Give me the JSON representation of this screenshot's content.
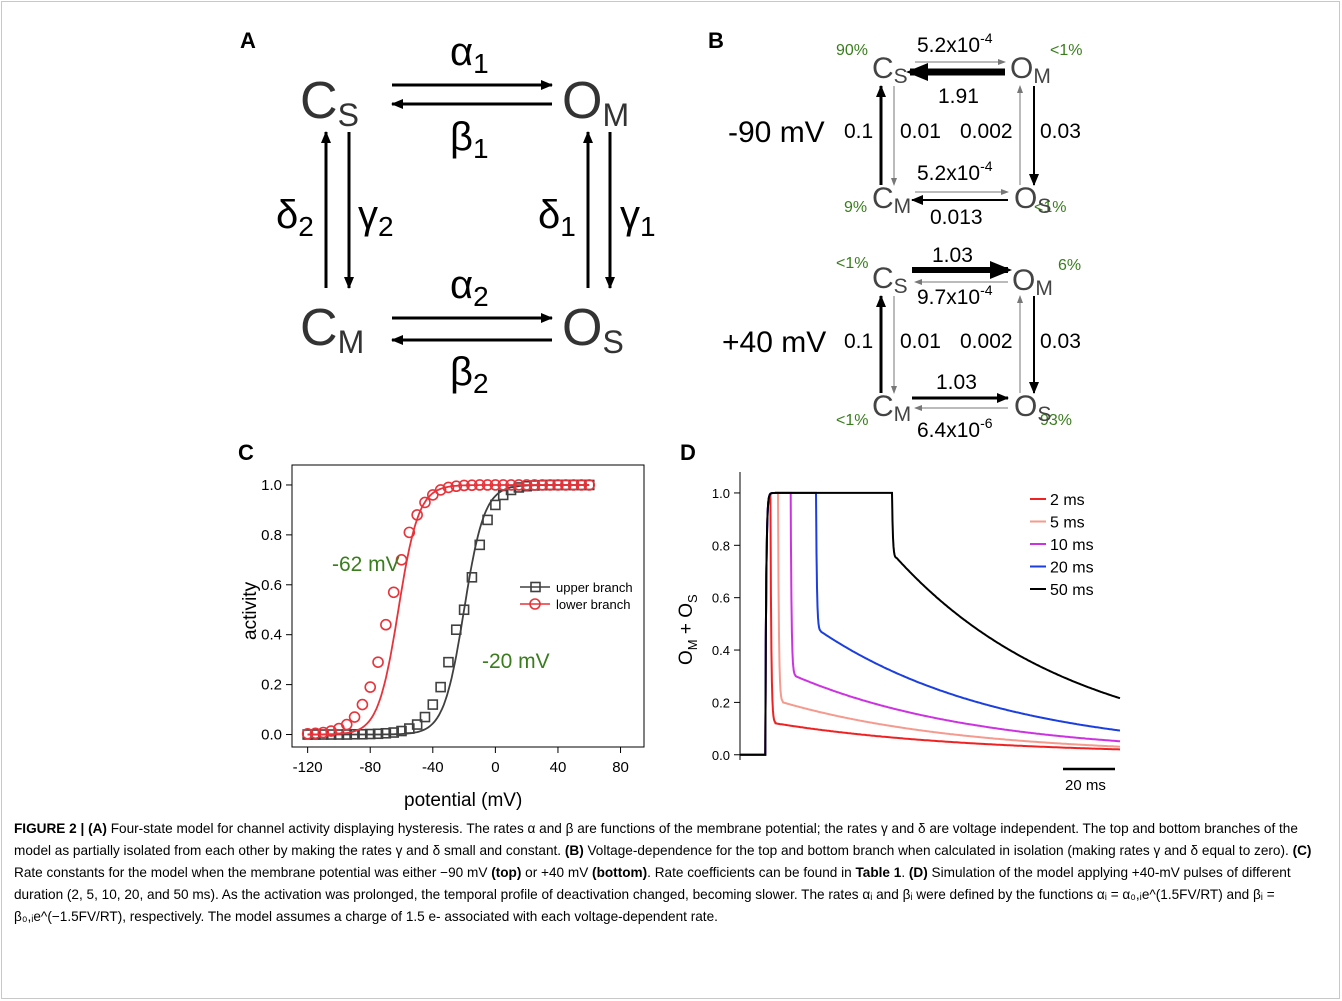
{
  "panels": {
    "A": {
      "letter": "A",
      "states": {
        "cs": "C",
        "cs_sub": "S",
        "om": "O",
        "om_sub": "M",
        "cm": "C",
        "cm_sub": "M",
        "os": "O",
        "os_sub": "S"
      },
      "rates": {
        "alpha1": "α",
        "alpha1_sub": "1",
        "beta1": "β",
        "beta1_sub": "1",
        "delta2": "δ",
        "delta2_sub": "2",
        "gamma2": "γ",
        "gamma2_sub": "2",
        "delta1": "δ",
        "delta1_sub": "1",
        "gamma1": "γ",
        "gamma1_sub": "1",
        "alpha2": "α",
        "alpha2_sub": "2",
        "beta2": "β",
        "beta2_sub": "2"
      }
    },
    "B": {
      "letter": "B",
      "top": {
        "voltage": "-90 mV",
        "pct": {
          "cs": "90%",
          "om": "<1%",
          "cm": "9%",
          "os": "<1%"
        },
        "rate_up_base": "5.2x10",
        "rate_up_exp": "-4",
        "rate_up_back": "1.91",
        "rate_bottom_base": "5.2x10",
        "rate_bottom_exp": "-4",
        "rate_bottom_back": "0.013",
        "left_up": "0.1",
        "left_down": "0.01",
        "right_up": "0.002",
        "right_down": "0.03"
      },
      "bottom": {
        "voltage": "+40 mV",
        "pct": {
          "cs": "<1%",
          "om": "6%",
          "cm": "<1%",
          "os": "93%"
        },
        "rate_up_fwd": "1.03",
        "rate_up_back_base": "9.7x10",
        "rate_up_back_exp": "-4",
        "rate_bottom_fwd": "1.03",
        "rate_bottom_back_base": "6.4x10",
        "rate_bottom_back_exp": "-6",
        "left_up": "0.1",
        "left_down": "0.01",
        "right_up": "0.002",
        "right_down": "0.03"
      },
      "states": {
        "c": "C",
        "o": "O",
        "s": "S",
        "m": "M"
      }
    },
    "C": {
      "letter": "C",
      "annotations": {
        "left": "-62 mV",
        "right": "-20 mV"
      }
    },
    "D": {
      "letter": "D",
      "ylabel_main": "O",
      "ylabel_sub1": "M",
      "ylabel_plus": " + O",
      "ylabel_sub2": "S",
      "scalebar": "20 ms"
    }
  },
  "chart_data": [
    {
      "type": "scatter",
      "panel": "C",
      "xlabel": "potential (mV)",
      "ylabel": "activity",
      "xlim": [
        -130,
        95
      ],
      "ylim": [
        -0.05,
        1.08
      ],
      "xticks": [
        -120,
        -80,
        -40,
        0,
        40,
        80
      ],
      "yticks": [
        0.0,
        0.2,
        0.4,
        0.6,
        0.8,
        1.0
      ],
      "legend": "center-right",
      "x": [
        -120,
        -115,
        -110,
        -105,
        -100,
        -95,
        -90,
        -85,
        -80,
        -75,
        -70,
        -65,
        -60,
        -55,
        -50,
        -45,
        -40,
        -35,
        -30,
        -25,
        -20,
        -15,
        -10,
        -5,
        0,
        5,
        10,
        15,
        20,
        25,
        30,
        35,
        40,
        45,
        50,
        55,
        60
      ],
      "series": [
        {
          "name": "upper branch",
          "color": "#404040",
          "marker": "square",
          "v_half": -20,
          "slope": 6.5,
          "values": [
            0.0,
            0.0,
            0.0,
            0.0,
            0.0,
            0.0,
            0.001,
            0.001,
            0.002,
            0.003,
            0.005,
            0.008,
            0.014,
            0.024,
            0.04,
            0.07,
            0.12,
            0.19,
            0.29,
            0.42,
            0.5,
            0.63,
            0.76,
            0.86,
            0.92,
            0.96,
            0.98,
            0.99,
            0.995,
            0.998,
            0.999,
            1.0,
            1.0,
            1.0,
            1.0,
            1.0,
            1.0
          ]
        },
        {
          "name": "lower branch",
          "color": "#e8333a",
          "marker": "circle",
          "v_half": -62,
          "slope": 6.5,
          "values": [
            0.003,
            0.005,
            0.008,
            0.014,
            0.024,
            0.04,
            0.07,
            0.12,
            0.19,
            0.29,
            0.44,
            0.57,
            0.7,
            0.81,
            0.88,
            0.93,
            0.96,
            0.98,
            0.99,
            0.995,
            0.998,
            0.999,
            1.0,
            1.0,
            1.0,
            1.0,
            1.0,
            1.0,
            1.0,
            1.0,
            1.0,
            1.0,
            1.0,
            1.0,
            1.0,
            1.0,
            1.0
          ]
        }
      ]
    },
    {
      "type": "line",
      "panel": "D",
      "xlabel": "",
      "ylabel": "O_M + O_S",
      "xlim": [
        0,
        150
      ],
      "ylim": [
        -0.02,
        1.08
      ],
      "yticks": [
        0.0,
        0.2,
        0.4,
        0.6,
        0.8,
        1.0
      ],
      "legend": "top-right",
      "series": [
        {
          "name": "2 ms",
          "color": "#ee2222",
          "duration": 2,
          "drop_level": 0.12,
          "end_value": 0.02
        },
        {
          "name": "5 ms",
          "color": "#f49a8e",
          "duration": 5,
          "drop_level": 0.2,
          "end_value": 0.03
        },
        {
          "name": "10 ms",
          "color": "#cc33e0",
          "duration": 10,
          "drop_level": 0.3,
          "end_value": 0.05
        },
        {
          "name": "20 ms",
          "color": "#1b3ee0",
          "duration": 20,
          "drop_level": 0.47,
          "end_value": 0.09
        },
        {
          "name": "50 ms",
          "color": "#000000",
          "duration": 50,
          "drop_level": 0.75,
          "end_value": 0.21
        }
      ]
    }
  ],
  "caption": {
    "title": "FIGURE 2 | ",
    "a": "(A)",
    "a_text": " Four-state model for channel activity displaying hysteresis. The rates α and β are functions of the membrane potential; the rates γ and δ are voltage independent. The top and bottom branches of the model as partially isolated from each other by making the rates γ and δ small and constant. ",
    "b": "(B)",
    "b_text": " Voltage-dependence for the top and bottom branch when calculated in isolation (making rates γ and δ equal to zero). ",
    "c": "(C)",
    "c_text1": " Rate constants for the model when the membrane potential was either −90 mV ",
    "top": "(top)",
    "c_text2": " or +40 mV ",
    "bottom": "(bottom)",
    "c_text3": ". Rate coefficients can be found in ",
    "table": "Table 1",
    "c_text4": ". ",
    "d": "(D)",
    "d_text": " Simulation of the model applying +40-mV pulses of different duration (2, 5, 10, 20, and 50 ms). As the activation was prolonged, the temporal profile of deactivation changed, becoming slower. The rates αᵢ and βᵢ were defined by the functions αᵢ = α₀,ᵢe^(1.5FV/RT) and βᵢ = β₀,ᵢe^(−1.5FV/RT), respectively. The model assumes a charge of 1.5 e- associated with each voltage-dependent rate."
  }
}
